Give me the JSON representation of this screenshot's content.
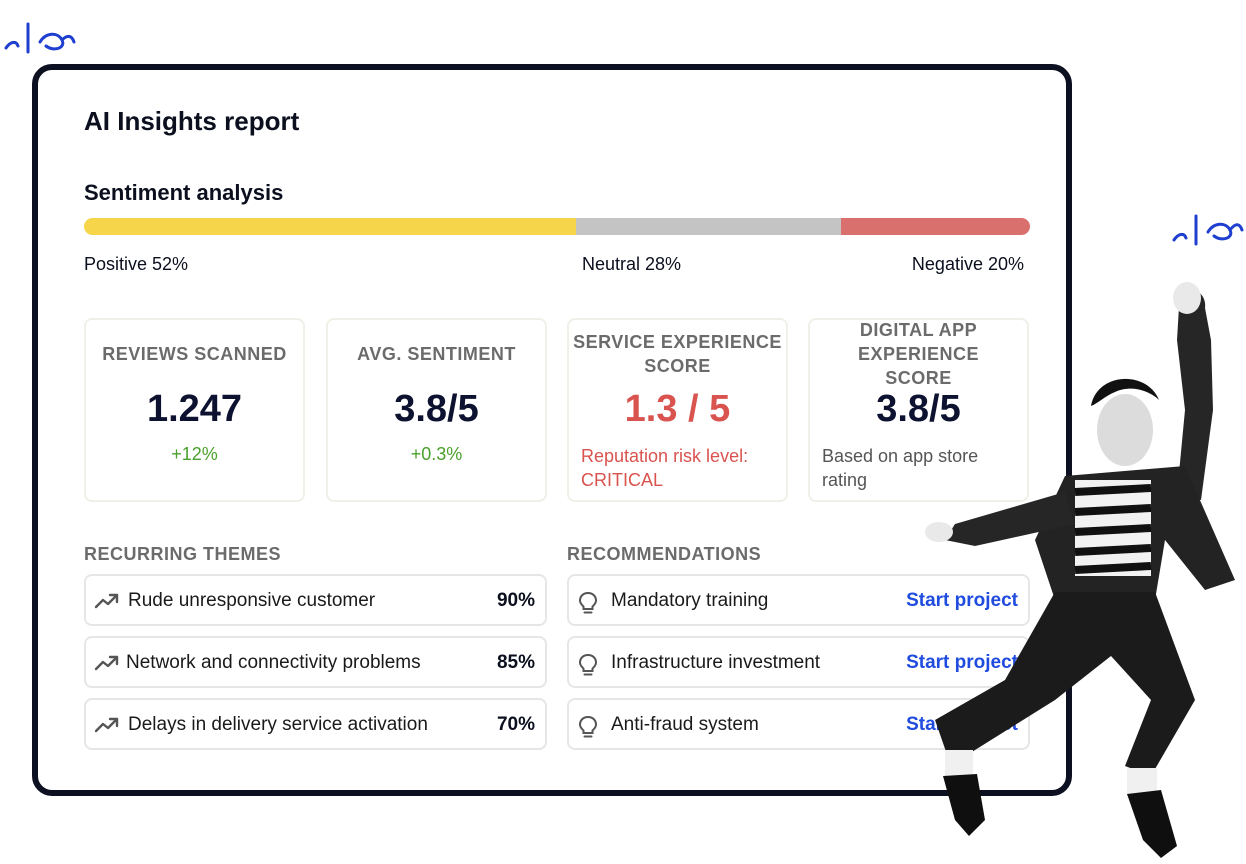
{
  "report": {
    "title": "AI Insights report"
  },
  "sentiment": {
    "title": "Sentiment analysis",
    "segments": [
      {
        "label": "Positive 52%",
        "percent": 52,
        "color": "#f7d54a"
      },
      {
        "label": "Neutral 28%",
        "percent": 28,
        "color": "#c4c4c4"
      },
      {
        "label": "Negative 20%",
        "percent": 20,
        "color": "#d9706d"
      }
    ]
  },
  "metrics": [
    {
      "label": "REVIEWS SCANNED",
      "value": "1.247",
      "change": "+12%"
    },
    {
      "label": "AVG. SENTIMENT",
      "value": "3.8/5",
      "change": "+0.3%"
    },
    {
      "label": "SERVICE EXPERIENCE SCORE",
      "value": "1.3 / 5",
      "note": "Reputation risk level: CRITICAL",
      "color": "#d9534f"
    },
    {
      "label": "DIGITAL APP EXPERIENCE SCORE",
      "value": "3.8/5",
      "note": "Based on app store rating"
    }
  ],
  "themes": {
    "title": "RECURRING THEMES",
    "items": [
      {
        "text": "Rude unresponsive customer",
        "percent": "90%"
      },
      {
        "text": "Network and connectivity problems",
        "percent": "85%"
      },
      {
        "text": "Delays in delivery service activation",
        "percent": "70%"
      }
    ]
  },
  "recommendations": {
    "title": "RECOMMENDATIONS",
    "items": [
      {
        "text": "Mandatory training",
        "action": "Start project"
      },
      {
        "text": "Infrastructure investment",
        "action": "Start project"
      },
      {
        "text": "Anti-fraud system",
        "action": "Start project"
      }
    ]
  },
  "colors": {
    "accent_blue": "#1f4bdf",
    "critical_red": "#d9534f",
    "positive_green": "#4aa02c",
    "frame_dark": "#0d1020"
  }
}
